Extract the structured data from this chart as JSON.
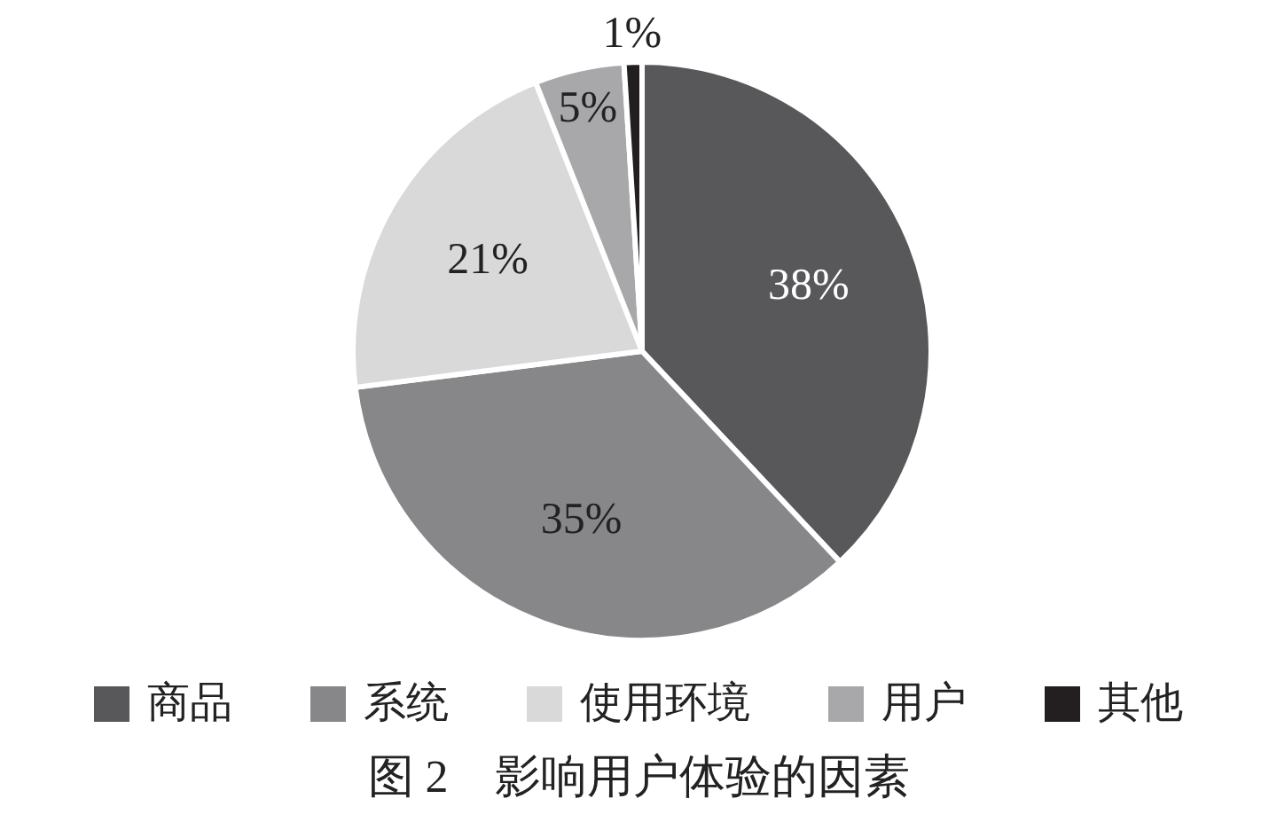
{
  "chart_data": {
    "type": "pie",
    "title": "图 2　影响用户体验的因素",
    "categories": [
      "商品",
      "系统",
      "使用环境",
      "用户",
      "其他"
    ],
    "values": [
      38,
      35,
      21,
      5,
      1
    ],
    "colors": [
      "#58585a",
      "#87878a",
      "#d9d9d9",
      "#a8a8aa",
      "#231f20"
    ],
    "value_labels": [
      "38%",
      "35%",
      "21%",
      "5%",
      "1%"
    ],
    "legend": "bottom"
  }
}
